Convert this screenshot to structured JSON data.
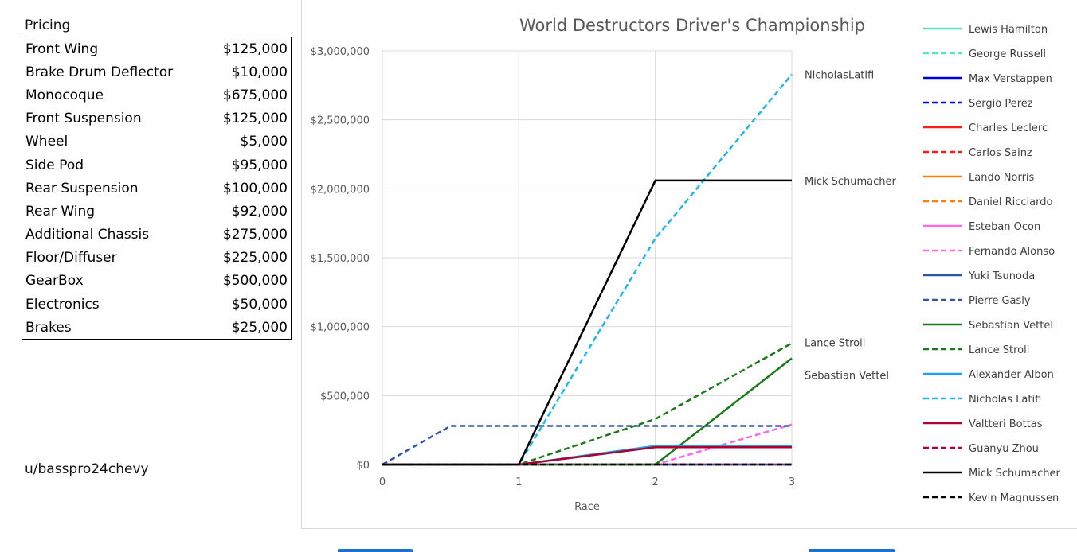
{
  "pricing": {
    "title": "Pricing",
    "items": [
      {
        "name": "Front Wing",
        "price": "$125,000"
      },
      {
        "name": "Brake Drum Deflector",
        "price": "$10,000"
      },
      {
        "name": "Monocoque",
        "price": "$675,000"
      },
      {
        "name": "Front Suspension",
        "price": "$125,000"
      },
      {
        "name": "Wheel",
        "price": "$5,000"
      },
      {
        "name": "Side Pod",
        "price": "$95,000"
      },
      {
        "name": "Rear Suspension",
        "price": "$100,000"
      },
      {
        "name": "Rear Wing",
        "price": "$92,000"
      },
      {
        "name": "Additional Chassis",
        "price": "$275,000"
      },
      {
        "name": "Floor/Diffuser",
        "price": "$225,000"
      },
      {
        "name": "GearBox",
        "price": "$500,000"
      },
      {
        "name": "Electronics",
        "price": "$50,000"
      },
      {
        "name": "Brakes",
        "price": "$25,000"
      }
    ]
  },
  "credit": "u/basspro24chevy",
  "chart_data": {
    "type": "line",
    "title": "World Destructors Driver's Championship",
    "xlabel": "Race",
    "ylabel": "",
    "xlim": [
      0,
      3
    ],
    "ylim": [
      0,
      3000000
    ],
    "x_ticks": [
      "0",
      "1",
      "2",
      "3"
    ],
    "y_ticks": [
      "$0",
      "$500,000",
      "$1,000,000",
      "$1,500,000",
      "$2,000,000",
      "$2,500,000",
      "$3,000,000"
    ],
    "grid": "vertical and horizontal",
    "legend_position": "right",
    "series": [
      {
        "name": "Lewis Hamilton",
        "color": "#4de8c2",
        "dash": "solid",
        "x": [
          0,
          1,
          2,
          3
        ],
        "y": [
          0,
          0,
          0,
          0
        ]
      },
      {
        "name": "George Russell",
        "color": "#4de8c2",
        "dash": "dashed",
        "x": [
          0,
          1,
          2,
          3
        ],
        "y": [
          0,
          0,
          0,
          0
        ]
      },
      {
        "name": "Max Verstappen",
        "color": "#0000e6",
        "dash": "solid",
        "x": [
          0,
          1,
          2,
          3
        ],
        "y": [
          0,
          0,
          0,
          0
        ]
      },
      {
        "name": "Sergio Perez",
        "color": "#0000e6",
        "dash": "dashed",
        "x": [
          0,
          1,
          2,
          3
        ],
        "y": [
          0,
          0,
          0,
          0
        ]
      },
      {
        "name": "Charles Leclerc",
        "color": "#ff1a1a",
        "dash": "solid",
        "x": [
          0,
          1,
          2,
          3
        ],
        "y": [
          0,
          0,
          0,
          0
        ]
      },
      {
        "name": "Carlos Sainz",
        "color": "#ff1a1a",
        "dash": "dashed",
        "x": [
          0,
          1,
          2,
          3
        ],
        "y": [
          0,
          0,
          0,
          0
        ]
      },
      {
        "name": "Lando Norris",
        "color": "#ff8000",
        "dash": "solid",
        "x": [
          0,
          1,
          2,
          3
        ],
        "y": [
          0,
          0,
          0,
          0
        ]
      },
      {
        "name": "Daniel Ricciardo",
        "color": "#ff8000",
        "dash": "dashed",
        "x": [
          0,
          1,
          2,
          3
        ],
        "y": [
          0,
          0,
          0,
          0
        ]
      },
      {
        "name": "Esteban Ocon",
        "color": "#ff66ee",
        "dash": "solid",
        "x": [
          0,
          1,
          2,
          3
        ],
        "y": [
          0,
          0,
          0,
          0
        ]
      },
      {
        "name": "Fernando Alonso",
        "color": "#ff66ee",
        "dash": "dashed",
        "x": [
          0,
          1,
          2,
          3
        ],
        "y": [
          0,
          0,
          0,
          290000
        ]
      },
      {
        "name": "Yuki Tsunoda",
        "color": "#3355a8",
        "dash": "solid",
        "x": [
          0,
          1,
          2,
          3
        ],
        "y": [
          0,
          0,
          0,
          0
        ]
      },
      {
        "name": "Pierre Gasly",
        "color": "#3355a8",
        "dash": "dashed",
        "x": [
          0,
          0.5,
          1,
          2,
          3
        ],
        "y": [
          0,
          280000,
          280000,
          280000,
          280000
        ]
      },
      {
        "name": "Sebastian Vettel",
        "color": "#1a7a1a",
        "dash": "solid",
        "x": [
          0,
          1,
          2,
          3
        ],
        "y": [
          0,
          0,
          0,
          770000
        ]
      },
      {
        "name": "Lance Stroll",
        "color": "#1a7a1a",
        "dash": "dashed",
        "x": [
          0,
          1,
          2,
          3
        ],
        "y": [
          0,
          0,
          330000,
          880000
        ]
      },
      {
        "name": "Alexander Albon",
        "color": "#1aa3e8",
        "dash": "solid",
        "x": [
          0,
          1,
          2,
          3
        ],
        "y": [
          0,
          0,
          135000,
          135000
        ]
      },
      {
        "name": "Nicholas Latifi",
        "color": "#22b5ea",
        "dash": "dashed",
        "x": [
          0,
          1,
          2,
          3
        ],
        "y": [
          0,
          0,
          1640000,
          2830000
        ]
      },
      {
        "name": "Valtteri Bottas",
        "color": "#b00032",
        "dash": "solid",
        "x": [
          0,
          1,
          2,
          3
        ],
        "y": [
          0,
          0,
          125000,
          125000
        ]
      },
      {
        "name": "Guanyu Zhou",
        "color": "#b00032",
        "dash": "dashed",
        "x": [
          0,
          1,
          2,
          3
        ],
        "y": [
          0,
          0,
          0,
          0
        ]
      },
      {
        "name": "Mick Schumacher",
        "color": "#000000",
        "dash": "solid",
        "x": [
          0,
          1,
          2,
          3
        ],
        "y": [
          0,
          0,
          2060000,
          2060000
        ]
      },
      {
        "name": "Kevin Magnussen",
        "color": "#000000",
        "dash": "dashed",
        "x": [
          0,
          1,
          2,
          3
        ],
        "y": [
          0,
          0,
          0,
          0
        ]
      }
    ],
    "annotations": [
      {
        "text": "NicholasLatifi",
        "series": "Nicholas Latifi"
      },
      {
        "text": "Mick Schumacher",
        "series": "Mick Schumacher"
      },
      {
        "text": "Lance Stroll",
        "series": "Lance Stroll"
      },
      {
        "text": "Sebastian Vettel",
        "series": "Sebastian Vettel"
      }
    ]
  }
}
